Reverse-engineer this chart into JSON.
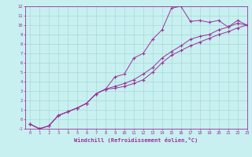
{
  "xlabel": "Windchill (Refroidissement éolien,°C)",
  "background_color": "#c8f0f0",
  "grid_color": "#a8d8d8",
  "line_color": "#993399",
  "x_values": [
    0,
    1,
    2,
    3,
    4,
    5,
    6,
    7,
    8,
    9,
    10,
    11,
    12,
    13,
    14,
    15,
    16,
    17,
    18,
    19,
    20,
    21,
    22,
    23
  ],
  "series1": [
    -0.5,
    -1.0,
    -0.7,
    0.4,
    0.8,
    1.2,
    1.7,
    2.7,
    3.2,
    4.5,
    4.8,
    6.5,
    7.0,
    8.5,
    9.5,
    11.8,
    12.0,
    10.4,
    10.5,
    10.3,
    10.5,
    9.8,
    10.5,
    10.0
  ],
  "series2": [
    -0.5,
    -1.0,
    -0.7,
    0.4,
    0.8,
    1.2,
    1.7,
    2.7,
    3.2,
    3.5,
    3.8,
    4.2,
    4.8,
    5.5,
    6.5,
    7.2,
    7.8,
    8.5,
    8.8,
    9.0,
    9.5,
    9.8,
    10.2,
    10.0
  ],
  "series3": [
    -0.5,
    -1.0,
    -0.7,
    0.4,
    0.8,
    1.2,
    1.7,
    2.7,
    3.2,
    3.3,
    3.5,
    3.8,
    4.2,
    5.0,
    6.0,
    6.8,
    7.3,
    7.8,
    8.2,
    8.6,
    9.0,
    9.3,
    9.7,
    10.0
  ],
  "xlim": [
    -0.5,
    23
  ],
  "ylim": [
    -1,
    12
  ],
  "yticks": [
    -1,
    0,
    1,
    2,
    3,
    4,
    5,
    6,
    7,
    8,
    9,
    10,
    11,
    12
  ],
  "xticks": [
    0,
    1,
    2,
    3,
    4,
    5,
    6,
    7,
    8,
    9,
    10,
    11,
    12,
    13,
    14,
    15,
    16,
    17,
    18,
    19,
    20,
    21,
    22,
    23
  ]
}
